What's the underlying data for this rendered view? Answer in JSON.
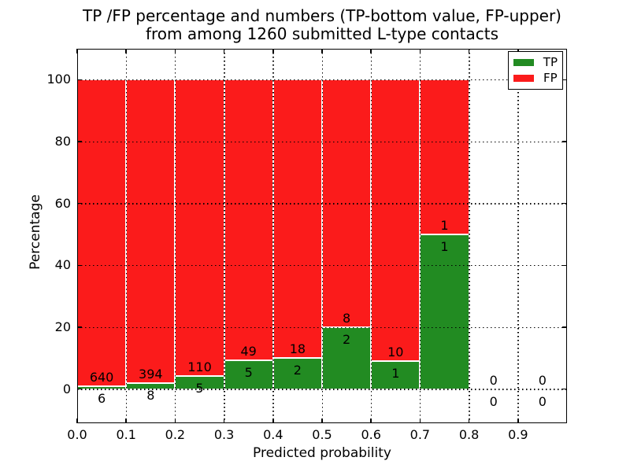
{
  "figure": {
    "title_line1": "TP /FP percentage and numbers (TP-bottom value, FP-upper)",
    "title_line2": "from among 1260 submitted L-type contacts",
    "xlabel": "Predicted probability",
    "ylabel": "Percentage"
  },
  "legend": {
    "items": [
      {
        "label": "TP",
        "color": "#228b22"
      },
      {
        "label": "FP",
        "color": "#fb1b1b"
      }
    ]
  },
  "chart_data": {
    "type": "bar",
    "stacked": true,
    "title": "TP /FP percentage and numbers (TP-bottom value, FP-upper) from among 1260 submitted L-type contacts",
    "xlabel": "Predicted probability",
    "ylabel": "Percentage",
    "total_contacts": 1260,
    "bin_width": 0.1,
    "bin_starts": [
      0.0,
      0.1,
      0.2,
      0.3,
      0.4,
      0.5,
      0.6,
      0.7,
      0.8,
      0.9
    ],
    "series": [
      {
        "name": "TP",
        "color": "#228b22",
        "counts": [
          6,
          8,
          5,
          5,
          2,
          2,
          1,
          1,
          0,
          0
        ]
      },
      {
        "name": "FP",
        "color": "#fb1b1b",
        "counts": [
          640,
          394,
          110,
          49,
          18,
          8,
          10,
          1,
          0,
          0
        ]
      }
    ],
    "tp_percent_of_bin": [
      0.93,
      1.99,
      4.35,
      9.26,
      10.0,
      20.0,
      9.09,
      50.0,
      0,
      0
    ],
    "xlim": [
      0.0,
      1.0
    ],
    "ylim": [
      -11,
      110
    ],
    "xtick_labels": [
      "0.0",
      "0.1",
      "0.2",
      "0.3",
      "0.4",
      "0.5",
      "0.6",
      "0.7",
      "0.8",
      "0.9"
    ],
    "ytick_values": [
      0,
      20,
      40,
      60,
      80,
      100
    ],
    "grid": "dotted",
    "legend_position": "upper right"
  }
}
